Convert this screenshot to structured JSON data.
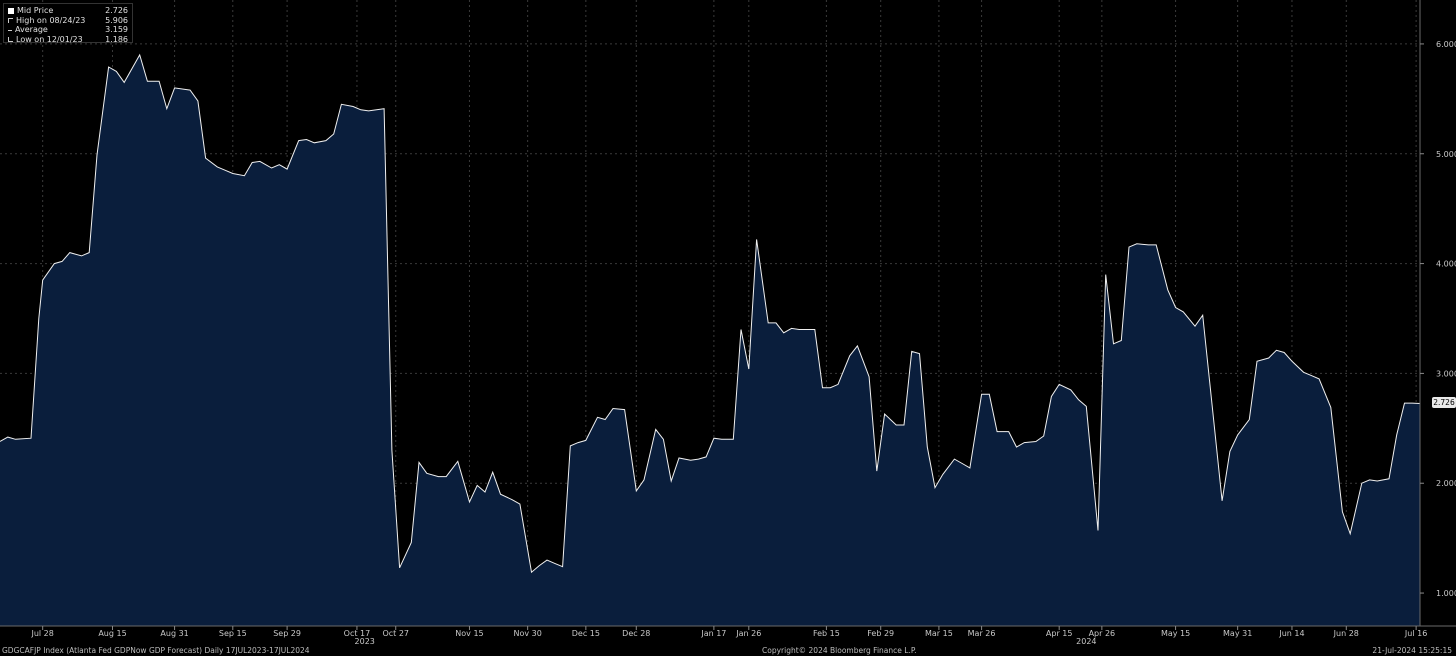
{
  "legend": {
    "items": [
      {
        "label": "Mid Price",
        "value": "2.726",
        "icon": "white-square-icon"
      },
      {
        "label": "High on 08/24/23",
        "value": "5.906",
        "icon": "high-marker-icon"
      },
      {
        "label": "Average",
        "value": "3.159",
        "icon": "average-marker-icon"
      },
      {
        "label": "Low on 12/01/23",
        "value": "1.186",
        "icon": "low-marker-icon"
      }
    ]
  },
  "last_value_tag": "2.726",
  "footer": {
    "left": "GDGCAFJP Index (Atlanta Fed GDPNow GDP Forecast)  Daily 17JUL2023-17JUL2024",
    "center": "Copyright© 2024 Bloomberg Finance L.P.",
    "right": "21-Jul-2024 15:25:15"
  },
  "colors": {
    "fill": "#0a1e3c",
    "line": "#f0f0f0",
    "grid": "#3a3a3a",
    "background": "#000000"
  },
  "chart_data": {
    "type": "area",
    "title": "",
    "xlabel": "",
    "ylabel": "",
    "ylim": [
      0.7,
      6.4
    ],
    "yticks": [
      1.0,
      2.0,
      3.0,
      4.0,
      5.0,
      6.0
    ],
    "ytick_labels": [
      "1.000",
      "2.000",
      "3.000",
      "4.000",
      "5.000",
      "6.000"
    ],
    "grid": true,
    "legend_position": "top-left",
    "x_range": [
      "2023-07-17",
      "2024-07-17"
    ],
    "xticks": [
      {
        "date": "2023-07-28",
        "label": "Jul 28"
      },
      {
        "date": "2023-08-15",
        "label": "Aug 15"
      },
      {
        "date": "2023-08-31",
        "label": "Aug 31"
      },
      {
        "date": "2023-09-15",
        "label": "Sep 15"
      },
      {
        "date": "2023-09-29",
        "label": "Sep 29"
      },
      {
        "date": "2023-10-17",
        "label": "Oct 17"
      },
      {
        "date": "2023-10-27",
        "label": "Oct 27"
      },
      {
        "date": "2023-11-15",
        "label": "Nov 15"
      },
      {
        "date": "2023-11-30",
        "label": "Nov 30"
      },
      {
        "date": "2023-12-15",
        "label": "Dec 15"
      },
      {
        "date": "2023-12-28",
        "label": "Dec 28"
      },
      {
        "date": "2024-01-17",
        "label": "Jan 17"
      },
      {
        "date": "2024-01-26",
        "label": "Jan 26"
      },
      {
        "date": "2024-02-15",
        "label": "Feb 15"
      },
      {
        "date": "2024-02-29",
        "label": "Feb 29"
      },
      {
        "date": "2024-03-15",
        "label": "Mar 15"
      },
      {
        "date": "2024-03-26",
        "label": "Mar 26"
      },
      {
        "date": "2024-04-15",
        "label": "Apr 15"
      },
      {
        "date": "2024-04-26",
        "label": "Apr 26"
      },
      {
        "date": "2024-05-15",
        "label": "May 15"
      },
      {
        "date": "2024-05-31",
        "label": "May 31"
      },
      {
        "date": "2024-06-14",
        "label": "Jun 14"
      },
      {
        "date": "2024-06-28",
        "label": "Jun 28"
      },
      {
        "date": "2024-07-16",
        "label": "Jul 16"
      }
    ],
    "year_labels": [
      {
        "date": "2023-10-19",
        "label": "2023"
      },
      {
        "date": "2024-04-22",
        "label": "2024"
      }
    ],
    "series": [
      {
        "name": "Mid Price",
        "points": [
          [
            "2023-07-17",
            2.38
          ],
          [
            "2023-07-19",
            2.42
          ],
          [
            "2023-07-21",
            2.4
          ],
          [
            "2023-07-25",
            2.41
          ],
          [
            "2023-07-27",
            3.5
          ],
          [
            "2023-07-28",
            3.85
          ],
          [
            "2023-07-31",
            4.0
          ],
          [
            "2023-08-02",
            4.02
          ],
          [
            "2023-08-04",
            4.1
          ],
          [
            "2023-08-07",
            4.07
          ],
          [
            "2023-08-09",
            4.1
          ],
          [
            "2023-08-11",
            4.99
          ],
          [
            "2023-08-14",
            5.79
          ],
          [
            "2023-08-16",
            5.75
          ],
          [
            "2023-08-18",
            5.65
          ],
          [
            "2023-08-22",
            5.9
          ],
          [
            "2023-08-24",
            5.66
          ],
          [
            "2023-08-27",
            5.66
          ],
          [
            "2023-08-29",
            5.41
          ],
          [
            "2023-08-31",
            5.6
          ],
          [
            "2023-09-04",
            5.58
          ],
          [
            "2023-09-06",
            5.48
          ],
          [
            "2023-09-08",
            4.96
          ],
          [
            "2023-09-11",
            4.88
          ],
          [
            "2023-09-13",
            4.85
          ],
          [
            "2023-09-15",
            4.82
          ],
          [
            "2023-09-18",
            4.8
          ],
          [
            "2023-09-20",
            4.92
          ],
          [
            "2023-09-22",
            4.93
          ],
          [
            "2023-09-25",
            4.87
          ],
          [
            "2023-09-27",
            4.9
          ],
          [
            "2023-09-29",
            4.86
          ],
          [
            "2023-10-02",
            5.12
          ],
          [
            "2023-10-04",
            5.13
          ],
          [
            "2023-10-06",
            5.1
          ],
          [
            "2023-10-09",
            5.12
          ],
          [
            "2023-10-11",
            5.18
          ],
          [
            "2023-10-13",
            5.45
          ],
          [
            "2023-10-16",
            5.43
          ],
          [
            "2023-10-18",
            5.4
          ],
          [
            "2023-10-20",
            5.39
          ],
          [
            "2023-10-24",
            5.41
          ],
          [
            "2023-10-26",
            2.3
          ],
          [
            "2023-10-28",
            1.23
          ],
          [
            "2023-10-31",
            1.46
          ],
          [
            "2023-11-02",
            2.19
          ],
          [
            "2023-11-04",
            2.09
          ],
          [
            "2023-11-07",
            2.06
          ],
          [
            "2023-11-09",
            2.06
          ],
          [
            "2023-11-12",
            2.2
          ],
          [
            "2023-11-15",
            1.83
          ],
          [
            "2023-11-17",
            1.98
          ],
          [
            "2023-11-19",
            1.92
          ],
          [
            "2023-11-21",
            2.1
          ],
          [
            "2023-11-23",
            1.9
          ],
          [
            "2023-11-26",
            1.85
          ],
          [
            "2023-11-28",
            1.81
          ],
          [
            "2023-12-01",
            1.19
          ],
          [
            "2023-12-03",
            1.25
          ],
          [
            "2023-12-05",
            1.3
          ],
          [
            "2023-12-07",
            1.27
          ],
          [
            "2023-12-09",
            1.24
          ],
          [
            "2023-12-11",
            2.34
          ],
          [
            "2023-12-13",
            2.37
          ],
          [
            "2023-12-15",
            2.39
          ],
          [
            "2023-12-18",
            2.6
          ],
          [
            "2023-12-20",
            2.58
          ],
          [
            "2023-12-22",
            2.68
          ],
          [
            "2023-12-25",
            2.67
          ],
          [
            "2023-12-28",
            1.93
          ],
          [
            "2023-12-30",
            2.03
          ],
          [
            "2024-01-02",
            2.49
          ],
          [
            "2024-01-04",
            2.4
          ],
          [
            "2024-01-06",
            2.02
          ],
          [
            "2024-01-08",
            2.23
          ],
          [
            "2024-01-11",
            2.21
          ],
          [
            "2024-01-13",
            2.22
          ],
          [
            "2024-01-15",
            2.24
          ],
          [
            "2024-01-17",
            2.41
          ],
          [
            "2024-01-19",
            2.4
          ],
          [
            "2024-01-22",
            2.4
          ],
          [
            "2024-01-24",
            3.4
          ],
          [
            "2024-01-26",
            3.04
          ],
          [
            "2024-01-28",
            4.22
          ],
          [
            "2024-01-31",
            3.46
          ],
          [
            "2024-02-02",
            3.46
          ],
          [
            "2024-02-04",
            3.37
          ],
          [
            "2024-02-06",
            3.41
          ],
          [
            "2024-02-08",
            3.4
          ],
          [
            "2024-02-12",
            3.4
          ],
          [
            "2024-02-14",
            2.87
          ],
          [
            "2024-02-16",
            2.87
          ],
          [
            "2024-02-18",
            2.9
          ],
          [
            "2024-02-21",
            3.16
          ],
          [
            "2024-02-23",
            3.25
          ],
          [
            "2024-02-26",
            2.97
          ],
          [
            "2024-02-28",
            2.11
          ],
          [
            "2024-03-01",
            2.63
          ],
          [
            "2024-03-04",
            2.53
          ],
          [
            "2024-03-06",
            2.53
          ],
          [
            "2024-03-08",
            3.2
          ],
          [
            "2024-03-10",
            3.18
          ],
          [
            "2024-03-12",
            2.33
          ],
          [
            "2024-03-14",
            1.96
          ],
          [
            "2024-03-16",
            2.08
          ],
          [
            "2024-03-19",
            2.22
          ],
          [
            "2024-03-21",
            2.18
          ],
          [
            "2024-03-23",
            2.14
          ],
          [
            "2024-03-26",
            2.81
          ],
          [
            "2024-03-28",
            2.81
          ],
          [
            "2024-03-30",
            2.47
          ],
          [
            "2024-04-02",
            2.47
          ],
          [
            "2024-04-04",
            2.33
          ],
          [
            "2024-04-06",
            2.37
          ],
          [
            "2024-04-09",
            2.38
          ],
          [
            "2024-04-11",
            2.43
          ],
          [
            "2024-04-13",
            2.79
          ],
          [
            "2024-04-15",
            2.9
          ],
          [
            "2024-04-18",
            2.85
          ],
          [
            "2024-04-20",
            2.76
          ],
          [
            "2024-04-22",
            2.7
          ],
          [
            "2024-04-25",
            1.57
          ],
          [
            "2024-04-27",
            3.9
          ],
          [
            "2024-04-29",
            3.27
          ],
          [
            "2024-05-01",
            3.3
          ],
          [
            "2024-05-03",
            4.15
          ],
          [
            "2024-05-05",
            4.18
          ],
          [
            "2024-05-08",
            4.17
          ],
          [
            "2024-05-10",
            4.17
          ],
          [
            "2024-05-13",
            3.76
          ],
          [
            "2024-05-15",
            3.6
          ],
          [
            "2024-05-17",
            3.56
          ],
          [
            "2024-05-20",
            3.43
          ],
          [
            "2024-05-22",
            3.53
          ],
          [
            "2024-05-27",
            1.84
          ],
          [
            "2024-05-29",
            2.29
          ],
          [
            "2024-05-31",
            2.44
          ],
          [
            "2024-06-03",
            2.58
          ],
          [
            "2024-06-05",
            3.11
          ],
          [
            "2024-06-08",
            3.14
          ],
          [
            "2024-06-10",
            3.21
          ],
          [
            "2024-06-12",
            3.19
          ],
          [
            "2024-06-14",
            3.11
          ],
          [
            "2024-06-17",
            3.01
          ],
          [
            "2024-06-19",
            2.98
          ],
          [
            "2024-06-21",
            2.95
          ],
          [
            "2024-06-24",
            2.69
          ],
          [
            "2024-06-27",
            1.74
          ],
          [
            "2024-06-29",
            1.54
          ],
          [
            "2024-07-02",
            2.0
          ],
          [
            "2024-07-04",
            2.03
          ],
          [
            "2024-07-06",
            2.02
          ],
          [
            "2024-07-09",
            2.04
          ],
          [
            "2024-07-11",
            2.44
          ],
          [
            "2024-07-13",
            2.73
          ],
          [
            "2024-07-15",
            2.73
          ],
          [
            "2024-07-17",
            2.726
          ]
        ]
      }
    ]
  }
}
